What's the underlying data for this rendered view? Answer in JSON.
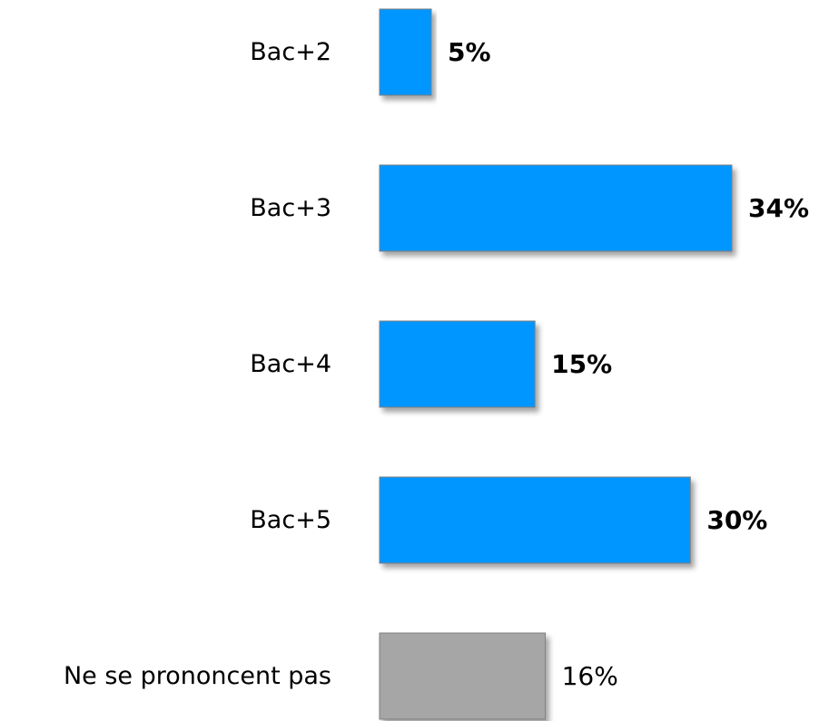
{
  "chart_data": {
    "type": "bar",
    "orientation": "horizontal",
    "categories": [
      "Bac+2",
      "Bac+3",
      "Bac+4",
      "Bac+5",
      "Ne se prononcent pas"
    ],
    "values": [
      5,
      34,
      15,
      30,
      16
    ],
    "value_labels": [
      "5%",
      "34%",
      "15%",
      "30%",
      "16%"
    ],
    "value_label_bold": [
      true,
      true,
      true,
      true,
      false
    ],
    "bar_colors": [
      "#0096FF",
      "#0096FF",
      "#0096FF",
      "#0096FF",
      "#A6A6A6"
    ],
    "xlim": [
      0,
      34
    ],
    "grid": false,
    "legend": "none"
  }
}
